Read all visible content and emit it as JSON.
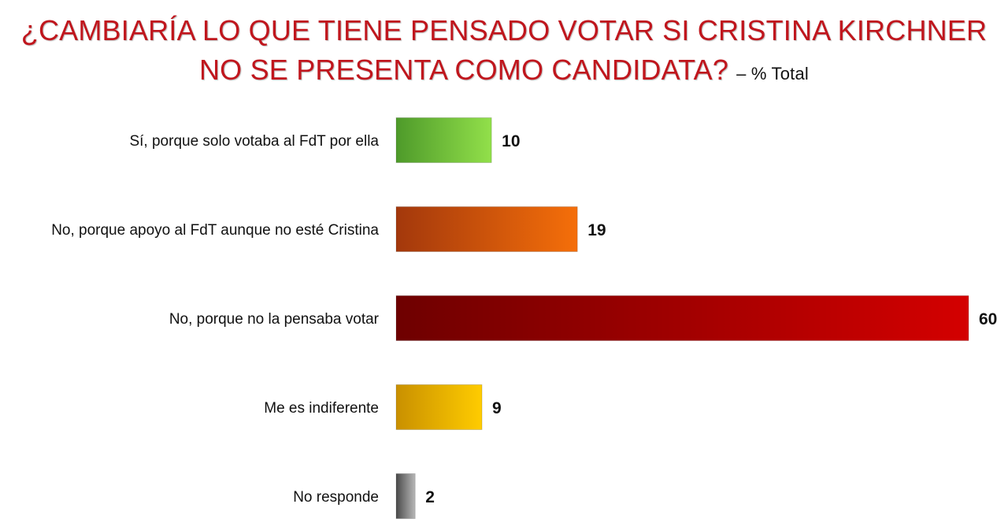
{
  "chart_data": {
    "type": "bar",
    "orientation": "horizontal",
    "title_line1": "¿CAMBIARÍA LO QUE TIENE PENSADO VOTAR SI CRISTINA KIRCHNER",
    "title_line2": "NO SE PRESENTA COMO CANDIDATA?",
    "subtitle": "– % Total",
    "categories": [
      "Sí, porque solo votaba al FdT por ella",
      "No, porque apoyo al FdT aunque no esté Cristina",
      "No, porque no la pensaba votar",
      "Me es indiferente",
      "No responde"
    ],
    "values": [
      10,
      19,
      60,
      9,
      2
    ],
    "xlim": [
      0,
      60
    ],
    "grid": false,
    "legend": "none",
    "colors": [
      [
        "#4e9a2a",
        "#92e04a"
      ],
      [
        "#a3380c",
        "#f56f0a"
      ],
      [
        "#6e0000",
        "#d40000"
      ],
      [
        "#c99000",
        "#ffcc00"
      ],
      [
        "#4a4a4a",
        "#b8b8b8"
      ]
    ],
    "title_color": "#c0161d"
  }
}
